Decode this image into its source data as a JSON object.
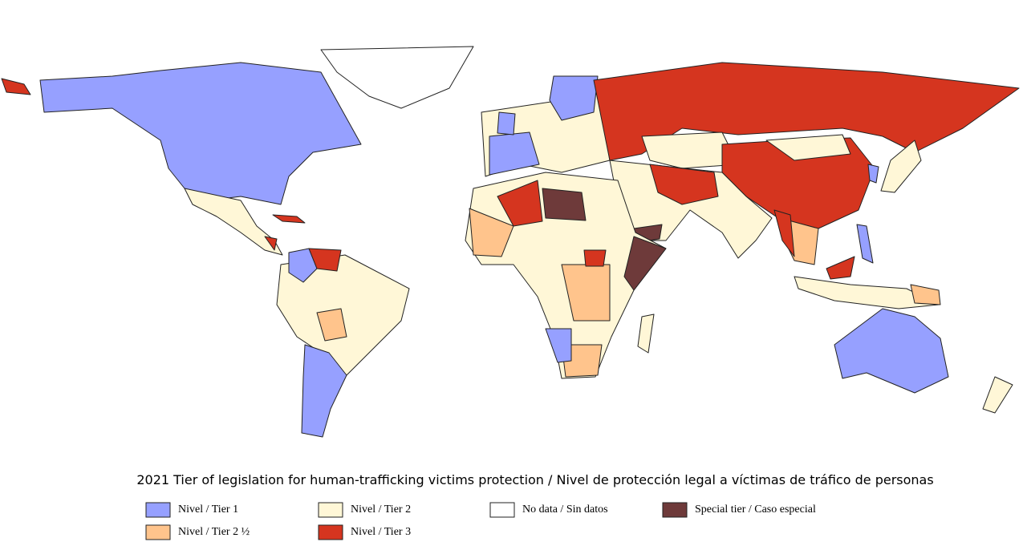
{
  "title": "2021 Tier of legislation for human-trafficking victims protection / Nivel de protección legal a víctimas de tráfico de personas",
  "legend": [
    {
      "label": "Nivel / Tier 1",
      "color": "#96a0ff"
    },
    {
      "label": "Nivel / Tier 2",
      "color": "#fff7d7"
    },
    {
      "label": "No data / Sin datos",
      "color": "#ffffff"
    },
    {
      "label": "Special tier / Caso especial",
      "color": "#6e3a3a"
    },
    {
      "label": "Nivel / Tier 2 ½",
      "color": "#ffc48c"
    },
    {
      "label": "Nivel / Tier 3",
      "color": "#d5351f"
    }
  ]
}
